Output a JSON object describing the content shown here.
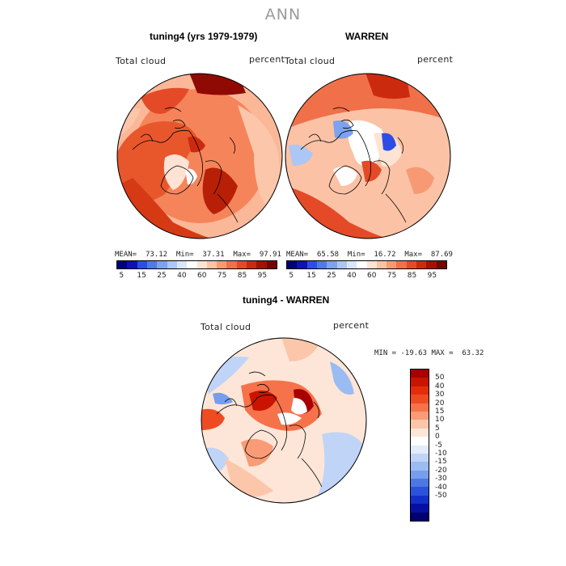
{
  "page_title": "ANN",
  "panels": [
    {
      "title": "tuning4 (yrs 1979-1979)",
      "var_label": "Total cloud",
      "units_label": "percent",
      "stats": {
        "mean_label": "MEAN=",
        "mean": "73.12",
        "min_label": "Min=",
        "min": "37.31",
        "max_label": "Max=",
        "max": "97.91"
      }
    },
    {
      "title": "WARREN",
      "var_label": "Total cloud",
      "units_label": "percent",
      "stats": {
        "mean_label": "MEAN=",
        "mean": "65.58",
        "min_label": "Min=",
        "min": "16.72",
        "max_label": "Max=",
        "max": "87.69"
      }
    },
    {
      "title": "tuning4 - WARREN",
      "var_label": "Total cloud",
      "units_label": "percent",
      "minmax_text": "MIN = -19.63 MAX =  63.32"
    }
  ],
  "colorbar_top": {
    "colors": [
      "#00007a",
      "#1010b8",
      "#2d4ee6",
      "#4f7ae8",
      "#7ea2ee",
      "#acc6f5",
      "#d8e6fb",
      "#ffffff",
      "#fde3d4",
      "#fbc2a6",
      "#f79a74",
      "#f0704a",
      "#e44a27",
      "#cc2a0f",
      "#a70f04",
      "#7a0000"
    ],
    "tick_labels": [
      "5",
      "15",
      "25",
      "40",
      "60",
      "75",
      "85",
      "95"
    ]
  },
  "colorbar_diff": {
    "colors": [
      "#a70000",
      "#c81400",
      "#e22d0c",
      "#ef4b22",
      "#f6724a",
      "#f99b76",
      "#fcc6aa",
      "#fde6d8",
      "#ffffff",
      "#e2ecfc",
      "#c0d4f7",
      "#9bbcf2",
      "#779ded",
      "#4c78e4",
      "#2c52db",
      "#1230c8",
      "#0510a2",
      "#000070"
    ],
    "tick_labels": [
      "50",
      "40",
      "30",
      "20",
      "15",
      "10",
      "5",
      "0",
      "-5",
      "-10",
      "-15",
      "-20",
      "-30",
      "-40",
      "-50"
    ]
  },
  "maps": {
    "panel1": {
      "field": "mostly warm",
      "description_colors": [
        "#e8572c",
        "#cc3010",
        "#f08a60",
        "#fcc0a0"
      ]
    },
    "panel2": {
      "field": "mixed",
      "description_colors": [
        "#f0704a",
        "#fcc6aa",
        "#7ea2ee",
        "#ffffff"
      ]
    },
    "panel3": {
      "field": "diff",
      "description_colors": [
        "#fcc6aa",
        "#ef4b22",
        "#c0d4f7",
        "#ffffff"
      ]
    }
  }
}
